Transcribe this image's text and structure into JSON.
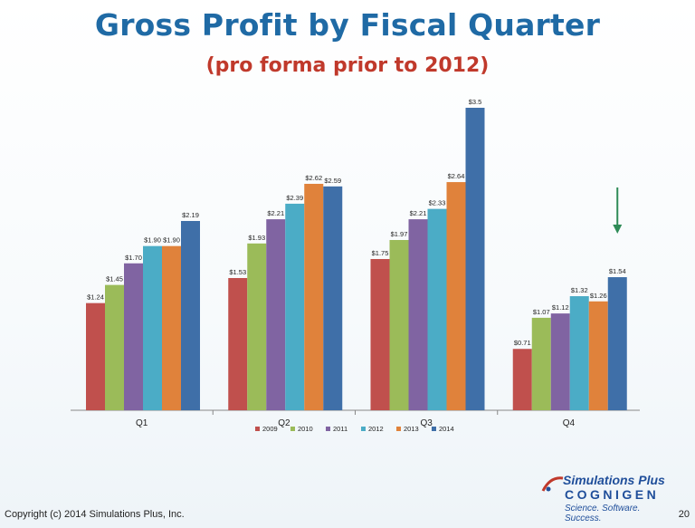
{
  "slide": {
    "title": "Gross Profit by Fiscal Quarter",
    "subtitle": "(pro forma prior to 2012)",
    "copyright": "Copyright (c) 2014 Simulations Plus, Inc.",
    "page_number": "20",
    "logo": {
      "name": "Simulations Plus",
      "line2": "COGNIGEN",
      "tagline": "Science. Software. Success."
    },
    "arrow_color": "#2e8b57",
    "arrow_target": "Q4 2014"
  },
  "chart_data": {
    "type": "bar",
    "categories": [
      "Q1",
      "Q2",
      "Q3",
      "Q4"
    ],
    "series": [
      {
        "name": "2009",
        "color": "#c0504d",
        "values": [
          1.24,
          1.53,
          1.75,
          0.71
        ],
        "labels": [
          "$1.24",
          "$1.53",
          "$1.75",
          "$0.71"
        ]
      },
      {
        "name": "2010",
        "color": "#9bbb59",
        "values": [
          1.45,
          1.93,
          1.97,
          1.07
        ],
        "labels": [
          "$1.45",
          "$1.93",
          "$1.97",
          "$1.07"
        ]
      },
      {
        "name": "2011",
        "color": "#8064a2",
        "values": [
          1.7,
          2.21,
          2.21,
          1.12
        ],
        "labels": [
          "$1.70",
          "$2.21",
          "$2.21",
          "$1.12"
        ]
      },
      {
        "name": "2012",
        "color": "#4bacc6",
        "values": [
          1.9,
          2.39,
          2.33,
          1.32
        ],
        "labels": [
          "$1.90",
          "$2.39",
          "$2.33",
          "$1.32"
        ]
      },
      {
        "name": "2013",
        "color": "#e0823b",
        "values": [
          1.9,
          2.62,
          2.64,
          1.26
        ],
        "labels": [
          "$1.90",
          "$2.62",
          "$2.64",
          "$1.26"
        ]
      },
      {
        "name": "2014",
        "color": "#3f6fa8",
        "values": [
          2.19,
          2.59,
          3.5,
          1.54
        ],
        "labels": [
          "$2.19",
          "$2.59",
          "$3.5",
          "$1.54"
        ]
      }
    ],
    "xlabel": "",
    "ylabel": "",
    "ylim": [
      0,
      3.5
    ],
    "grid": false,
    "legend": "bottom"
  }
}
